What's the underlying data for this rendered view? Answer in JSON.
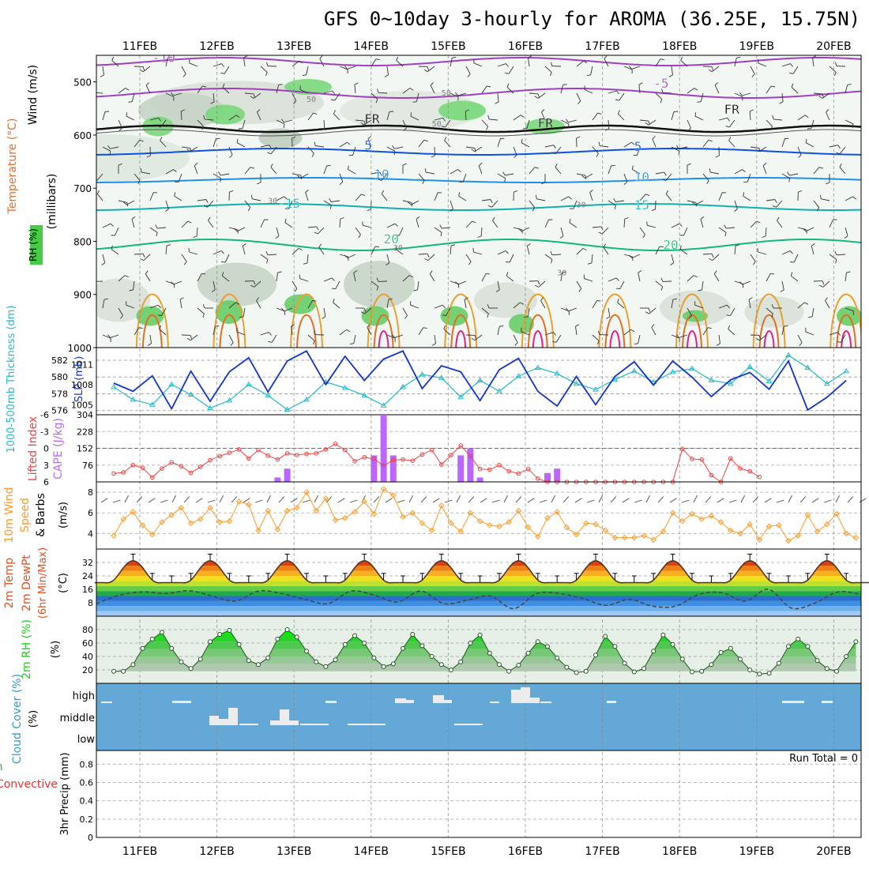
{
  "chart_data": {
    "type": "meteogram",
    "title": "GFS 0~10day 3-hourly for AROMA (36.25E, 15.75N)",
    "dates": [
      "11FEB",
      "12FEB",
      "13FEB",
      "14FEB",
      "15FEB",
      "16FEB",
      "17FEB",
      "18FEB",
      "19FEB",
      "20FEB"
    ],
    "upper_air": {
      "ylabel_rh": "RH (%)",
      "ylabel_temp": "Temperature (°C)",
      "ylabel_wind": "Wind (m/s)",
      "ylabel_units": "(millibars)",
      "ticks": [
        "500",
        "600",
        "700",
        "800",
        "900",
        "1000"
      ],
      "ylim": [
        450,
        1000
      ],
      "contour_labels": [
        {
          "text": "-10",
          "hour": 12,
          "p": 463,
          "color": "#a040c0"
        },
        {
          "text": "-5",
          "hour": 168,
          "p": 511,
          "color": "#a040c0"
        },
        {
          "text": "FR",
          "hour": 78,
          "p": 578,
          "color": "#000000"
        },
        {
          "text": "FR",
          "hour": 132,
          "p": 586,
          "color": "#000000"
        },
        {
          "text": "FR",
          "hour": 190,
          "p": 560,
          "color": "#000000"
        },
        {
          "text": "5",
          "hour": 78,
          "p": 628,
          "color": "#1050e0"
        },
        {
          "text": "5",
          "hour": 162,
          "p": 630,
          "color": "#1050e0"
        },
        {
          "text": "10",
          "hour": 81,
          "p": 682,
          "color": "#1e90e8"
        },
        {
          "text": "10",
          "hour": 162,
          "p": 687,
          "color": "#1e90e8"
        },
        {
          "text": "-15",
          "hour": 51,
          "p": 737,
          "color": "#10b0b0"
        },
        {
          "text": "15",
          "hour": 162,
          "p": 740,
          "color": "#10b0b0"
        },
        {
          "text": "20",
          "hour": 84,
          "p": 804,
          "color": "#10b880"
        },
        {
          "text": "20",
          "hour": 171,
          "p": 815,
          "color": "#10b880"
        },
        {
          "text": "50",
          "hour": 60,
          "p": 538,
          "color": "#808080"
        },
        {
          "text": "50",
          "hour": 102,
          "p": 526,
          "color": "#808080"
        },
        {
          "text": "50",
          "hour": 99,
          "p": 584,
          "color": "#808080"
        },
        {
          "text": "30",
          "hour": 48,
          "p": 729,
          "color": "#808080"
        },
        {
          "text": "30",
          "hour": 87,
          "p": 817,
          "color": "#808080"
        },
        {
          "text": "30",
          "hour": 138,
          "p": 864,
          "color": "#808080"
        },
        {
          "text": "30",
          "hour": 144,
          "p": 736,
          "color": "#808080"
        }
      ]
    },
    "thickness_slp": {
      "ylabel_thk": "1000-500mb Thickness (dm)",
      "ylabel_slp": "SLP (mb)",
      "thk_ticks": [
        "576",
        "578",
        "580",
        "582"
      ],
      "slp_ticks": [
        "1005",
        "1008",
        "1011"
      ],
      "thk_range": [
        575.5,
        583.5
      ],
      "slp_range": [
        1003.5,
        1013.5
      ],
      "slp_hours": [
        0,
        6,
        12,
        18,
        24,
        30,
        36,
        42,
        48,
        54,
        60,
        66,
        72,
        78,
        84,
        90,
        96,
        102,
        108,
        114,
        120,
        126,
        132,
        138,
        144,
        150,
        156,
        162,
        168,
        174,
        180,
        186,
        192,
        198,
        204,
        210,
        216,
        222,
        228
      ],
      "slp_values": [
        1008.2,
        1007.0,
        1009.3,
        1004.4,
        1010.0,
        1005.5,
        1009.9,
        1012.0,
        1006.9,
        1011.5,
        1013.0,
        1008.0,
        1012.2,
        1008.6,
        1011.8,
        1013.0,
        1007.4,
        1010.8,
        1009.9,
        1005.6,
        1010.2,
        1011.9,
        1007.0,
        1004.8,
        1009.2,
        1005.0,
        1009.2,
        1011.4,
        1007.9,
        1011.5,
        1009.1,
        1006.2,
        1008.7,
        1009.8,
        1007.3,
        1011.5,
        1004.2,
        1006.1,
        1008.6
      ],
      "thk_hours": [
        0,
        6,
        12,
        18,
        24,
        30,
        36,
        42,
        48,
        54,
        60,
        66,
        72,
        78,
        84,
        90,
        96,
        102,
        108,
        114,
        120,
        126,
        132,
        138,
        144,
        150,
        156,
        162,
        168,
        174,
        180,
        186,
        192,
        198,
        204,
        210,
        216,
        222,
        228
      ],
      "thk_values": [
        578.8,
        577.3,
        576.7,
        579.1,
        577.9,
        576.3,
        577.2,
        579.1,
        577.8,
        576.1,
        577.3,
        579.4,
        578.7,
        577.8,
        576.6,
        578.8,
        580.3,
        579.9,
        577.6,
        579.6,
        578.3,
        580.1,
        581.1,
        580.4,
        579.2,
        578.5,
        579.7,
        580.7,
        579.4,
        580.6,
        581.0,
        579.6,
        579.2,
        581.2,
        579.5,
        582.6,
        581.1,
        579.2,
        580.7
      ]
    },
    "stability": {
      "ylabel_li": "Lifted Index",
      "ylabel_cape": "CAPE (J/kg)",
      "li_ticks": [
        "-6",
        "-3",
        "0",
        "3",
        "6"
      ],
      "cape_ticks": [
        "76",
        "152",
        "228",
        "304"
      ],
      "li_range": [
        -6,
        6
      ],
      "cape_range": [
        0,
        304
      ],
      "li_hours": [
        0,
        3,
        6,
        9,
        12,
        15,
        18,
        21,
        24,
        27,
        30,
        33,
        36,
        39,
        42,
        45,
        48,
        51,
        54,
        57,
        60,
        63,
        66,
        69,
        72,
        75,
        78,
        81,
        84,
        87,
        90,
        93,
        96,
        99,
        102,
        105,
        108,
        111,
        114,
        117,
        120,
        123,
        126,
        129,
        132,
        135,
        138,
        141,
        144,
        147,
        150,
        153,
        156,
        159,
        162,
        165,
        168,
        171,
        174,
        177,
        180,
        183,
        186,
        189,
        192,
        195,
        198,
        201
      ],
      "li_values": [
        4.5,
        4.3,
        3.0,
        3.5,
        5.2,
        3.6,
        2.5,
        3.2,
        4.4,
        3.3,
        2.1,
        1.4,
        0.8,
        0.2,
        1.8,
        0.3,
        1.3,
        2.0,
        0.9,
        1.2,
        1.0,
        0.9,
        0.2,
        -0.8,
        0.3,
        2.3,
        1.6,
        1.9,
        3.1,
        2.1,
        2.0,
        2.2,
        1.1,
        0.3,
        2.9,
        1.2,
        -0.5,
        1.4,
        3.7,
        3.8,
        3.0,
        4.1,
        4.5,
        3.7,
        5.4,
        6.0,
        6.4,
        6.3,
        6.3,
        6.2,
        6.2,
        6.5,
        6.4,
        6.8,
        6.6,
        6.9,
        6.9,
        6.6,
        6.7,
        0.1,
        1.9,
        2.0,
        4.8,
        6.5,
        1.8,
        3.6,
        4.1,
        5.1
      ],
      "cape_bars": [
        {
          "hour": 51,
          "value": 20
        },
        {
          "hour": 54,
          "value": 60
        },
        {
          "hour": 81,
          "value": 120
        },
        {
          "hour": 84,
          "value": 300
        },
        {
          "hour": 87,
          "value": 120
        },
        {
          "hour": 108,
          "value": 120
        },
        {
          "hour": 111,
          "value": 150
        },
        {
          "hour": 114,
          "value": 20
        },
        {
          "hour": 135,
          "value": 40
        },
        {
          "hour": 138,
          "value": 60
        }
      ]
    },
    "wind10m": {
      "ylabel": "10m Wind Speed & Barbs (m/s)",
      "ticks": [
        "4",
        "6",
        "8"
      ],
      "ylim": [
        2.5,
        9
      ],
      "hours": [
        0,
        3,
        6,
        9,
        12,
        15,
        18,
        21,
        24,
        27,
        30,
        33,
        36,
        39,
        42,
        45,
        48,
        51,
        54,
        57,
        60,
        63,
        66,
        69,
        72,
        75,
        78,
        81,
        84,
        87,
        90,
        93,
        96,
        99,
        102,
        105,
        108,
        111,
        114,
        117,
        120,
        123,
        126,
        129,
        132,
        135,
        138,
        141,
        144,
        147,
        150,
        153,
        156,
        159,
        162,
        165,
        168,
        171,
        174,
        177,
        180,
        183,
        186,
        189,
        192,
        195,
        198,
        201,
        204,
        207,
        210,
        213,
        216,
        219,
        222,
        225,
        228,
        231
      ],
      "values": [
        3.8,
        5.4,
        6.1,
        4.8,
        3.9,
        5.1,
        5.8,
        6.5,
        5.0,
        5.4,
        6.5,
        5.1,
        5.2,
        7.1,
        6.8,
        4.3,
        6.2,
        4.4,
        6.2,
        6.5,
        8.0,
        6.2,
        7.4,
        5.3,
        5.5,
        6.1,
        7.1,
        5.9,
        8.3,
        7.7,
        5.6,
        6.0,
        5.0,
        4.3,
        6.7,
        5.0,
        4.2,
        6.0,
        5.2,
        4.8,
        4.7,
        5.1,
        6.2,
        4.6,
        3.7,
        5.5,
        6.1,
        4.6,
        3.9,
        5.0,
        4.9,
        4.3,
        3.6,
        3.6,
        3.6,
        3.8,
        3.4,
        4.2,
        6.0,
        5.2,
        5.9,
        5.4,
        5.7,
        5.1,
        4.3,
        4.0,
        4.9,
        3.4,
        4.7,
        4.8,
        3.3,
        3.8,
        5.8,
        4.2,
        4.9,
        5.9,
        4.0,
        3.6
      ]
    },
    "temperature2m": {
      "ylabel": "2m Temp 2m DewPt (6hr Min/Max) (°C)",
      "ticks": [
        "8",
        "16",
        "24",
        "32"
      ],
      "ylim": [
        0,
        40
      ],
      "temp_cycle": {
        "min": 20,
        "max": 33,
        "period_hours": 24,
        "peak_hour": 30
      },
      "dewpoint_values": [
        7.5,
        12.5,
        14.5,
        13.5,
        15.2,
        12.0,
        9.0,
        15.0,
        13.5,
        10.0,
        7.5,
        15.0,
        12.5,
        8.5,
        15.0,
        7.5,
        9.5,
        12.0,
        4.5,
        13.5,
        13.5,
        10.5,
        6.5,
        10.0,
        6.0,
        6.0,
        13.0,
        14.0,
        9.0,
        16.0,
        4.8,
        7.8,
        14.5,
        13.0
      ]
    },
    "rh2m": {
      "ylabel": "2m RH (%)",
      "ticks": [
        "20",
        "40",
        "60",
        "80"
      ],
      "ylim": [
        0,
        100
      ],
      "hours": [
        0,
        3,
        6,
        9,
        12,
        15,
        18,
        21,
        24,
        27,
        30,
        33,
        36,
        39,
        42,
        45,
        48,
        51,
        54,
        57,
        60,
        63,
        66,
        69,
        72,
        75,
        78,
        81,
        84,
        87,
        90,
        93,
        96,
        99,
        102,
        105,
        108,
        111,
        114,
        117,
        120,
        123,
        126,
        129,
        132,
        135,
        138,
        141,
        144,
        147,
        150,
        153,
        156,
        159,
        162,
        165,
        168,
        171,
        174,
        177,
        180,
        183,
        186,
        189,
        192,
        195,
        198,
        201,
        204,
        207,
        210,
        213,
        216,
        219,
        222,
        225,
        228,
        231
      ],
      "values": [
        18,
        18,
        28,
        52,
        66,
        76,
        52,
        32,
        22,
        36,
        62,
        73,
        79,
        58,
        34,
        28,
        38,
        66,
        80,
        69,
        48,
        32,
        25,
        35,
        58,
        71,
        60,
        38,
        25,
        29,
        52,
        73,
        56,
        40,
        28,
        20,
        32,
        60,
        72,
        45,
        28,
        18,
        27,
        45,
        62,
        55,
        38,
        24,
        16,
        18,
        42,
        70,
        55,
        30,
        17,
        22,
        48,
        72,
        58,
        36,
        17,
        18,
        28,
        46,
        52,
        36,
        20,
        14,
        15,
        30,
        55,
        66,
        55,
        34,
        22,
        18,
        40,
        62
      ]
    },
    "cloud": {
      "ylabel": "Cloud Cover (%)",
      "levels": [
        "high",
        "middle",
        "low"
      ]
    },
    "precip": {
      "ylabel_total": "Total / Rain",
      "ylabel_conv": "Convective",
      "ylabel": "3hr Precip (mm)",
      "ticks": [
        "0",
        "0.2",
        "0.4",
        "0.6",
        "0.8"
      ],
      "ylim": [
        0,
        0.95
      ],
      "run_total": "Run Total = 0"
    }
  },
  "colors": {
    "blue_bg": "#64a8d8",
    "green": "#22cc22",
    "cape": "#bb66ff",
    "lifted": "#ee4444",
    "wind": "#ff9922",
    "slp": "#1133cc",
    "thk": "#22bbcc"
  }
}
